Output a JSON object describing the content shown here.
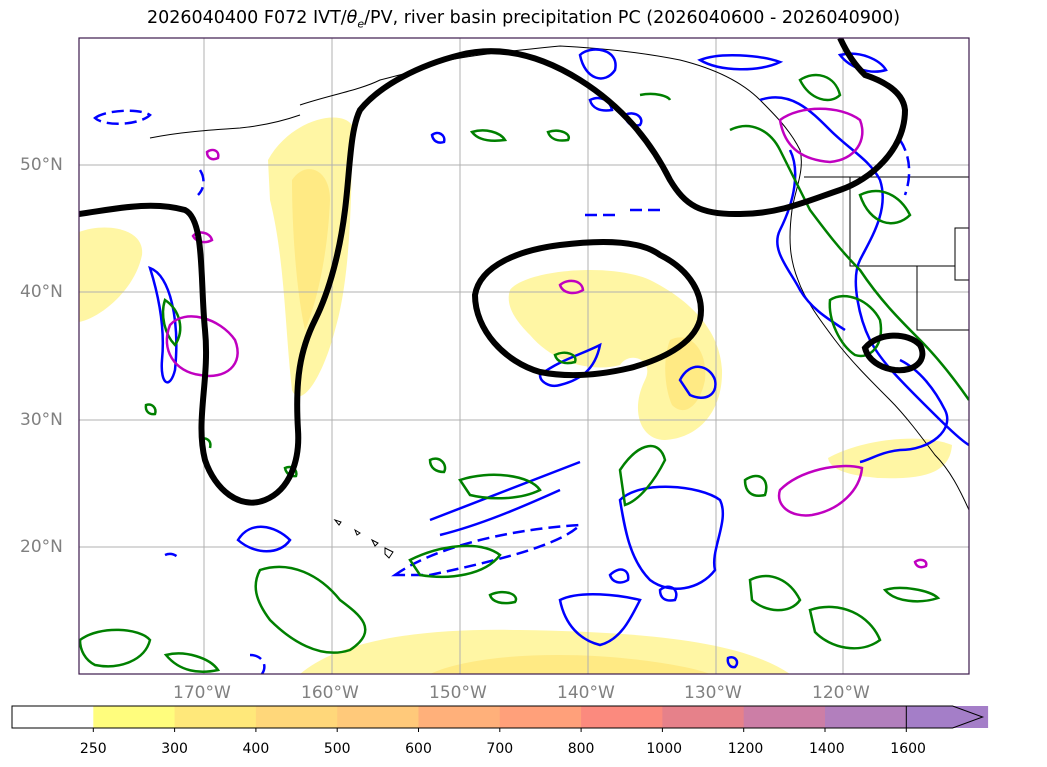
{
  "title": {
    "init": "2026040400",
    "lead": "F072",
    "ivt": "IVT/",
    "theta": "θ",
    "theta_sub": "e",
    "rest": "/PV, river basin precipitation PC (2026040600 - 2026040900)"
  },
  "axes": {
    "lon_labels": [
      "170°W",
      "160°W",
      "150°W",
      "140°W",
      "130°W",
      "120°W"
    ],
    "lat_labels": [
      "50°N",
      "40°N",
      "30°N",
      "20°N"
    ]
  },
  "colorbar": {
    "ticks": [
      "250",
      "300",
      "400",
      "500",
      "600",
      "700",
      "800",
      "1000",
      "1200",
      "1400",
      "1600"
    ],
    "colors": [
      "#ffffff",
      "#fffd7d",
      "#ffe87a",
      "#ffd77a",
      "#ffc97a",
      "#ffb07a",
      "#ffa07a",
      "#fb8a7e",
      "#e6818a",
      "#cc7ea6",
      "#b27fbd",
      "#a47ec8"
    ],
    "extend": "max"
  },
  "legend_colors": {
    "ivt_fill": "#fff59a",
    "pv_contour": "#000000",
    "theta_e_contour": "#0000ff",
    "precip_contour": "#008000",
    "pc_contour": "#c000c0"
  }
}
